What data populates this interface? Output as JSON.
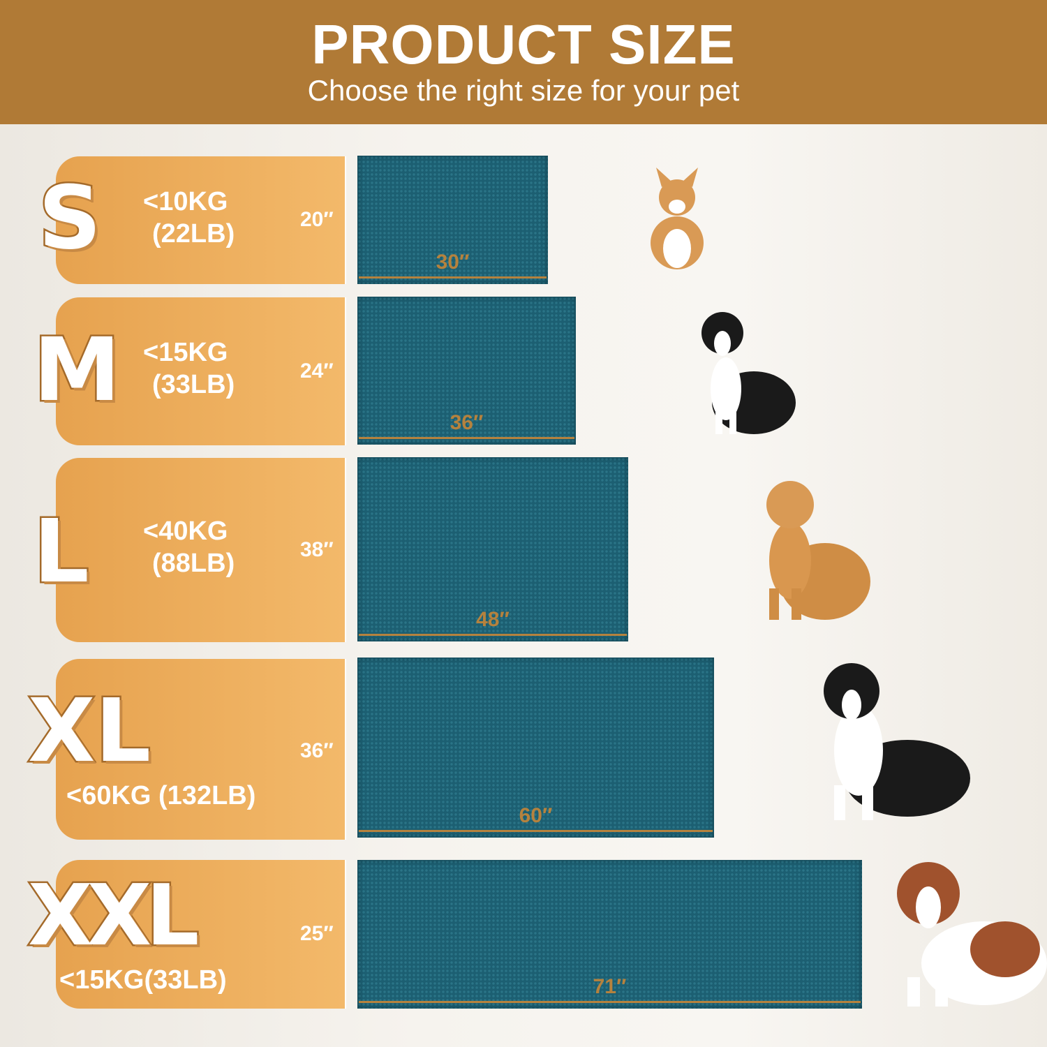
{
  "header": {
    "title": "PRODUCT SIZE",
    "subtitle": "Choose the right size for your pet"
  },
  "colors": {
    "header": "#b07a36",
    "panel": "#eda957",
    "mat": "#1c5f72",
    "width_label": "#b5823e"
  },
  "sizes": [
    {
      "letter": "S",
      "weight_kg": "<10KG",
      "weight_lb": "(22LB)",
      "height": "20″",
      "width": "30″",
      "dog": "corgi-icon"
    },
    {
      "letter": "M",
      "weight_kg": "<15KG",
      "weight_lb": "(33LB)",
      "height": "24″",
      "width": "36″",
      "dog": "border-collie-icon"
    },
    {
      "letter": "L",
      "weight_kg": "<40KG",
      "weight_lb": "(88LB)",
      "height": "38″",
      "width": "48″",
      "dog": "golden-retriever-icon"
    },
    {
      "letter": "XL",
      "weight": "<60KG (132LB)",
      "height": "36″",
      "width": "60″",
      "dog": "bernese-mountain-dog-icon"
    },
    {
      "letter": "XXL",
      "weight": "<15KG(33LB)",
      "height": "25″",
      "width": "71″",
      "dog": "saint-bernard-icon"
    }
  ]
}
